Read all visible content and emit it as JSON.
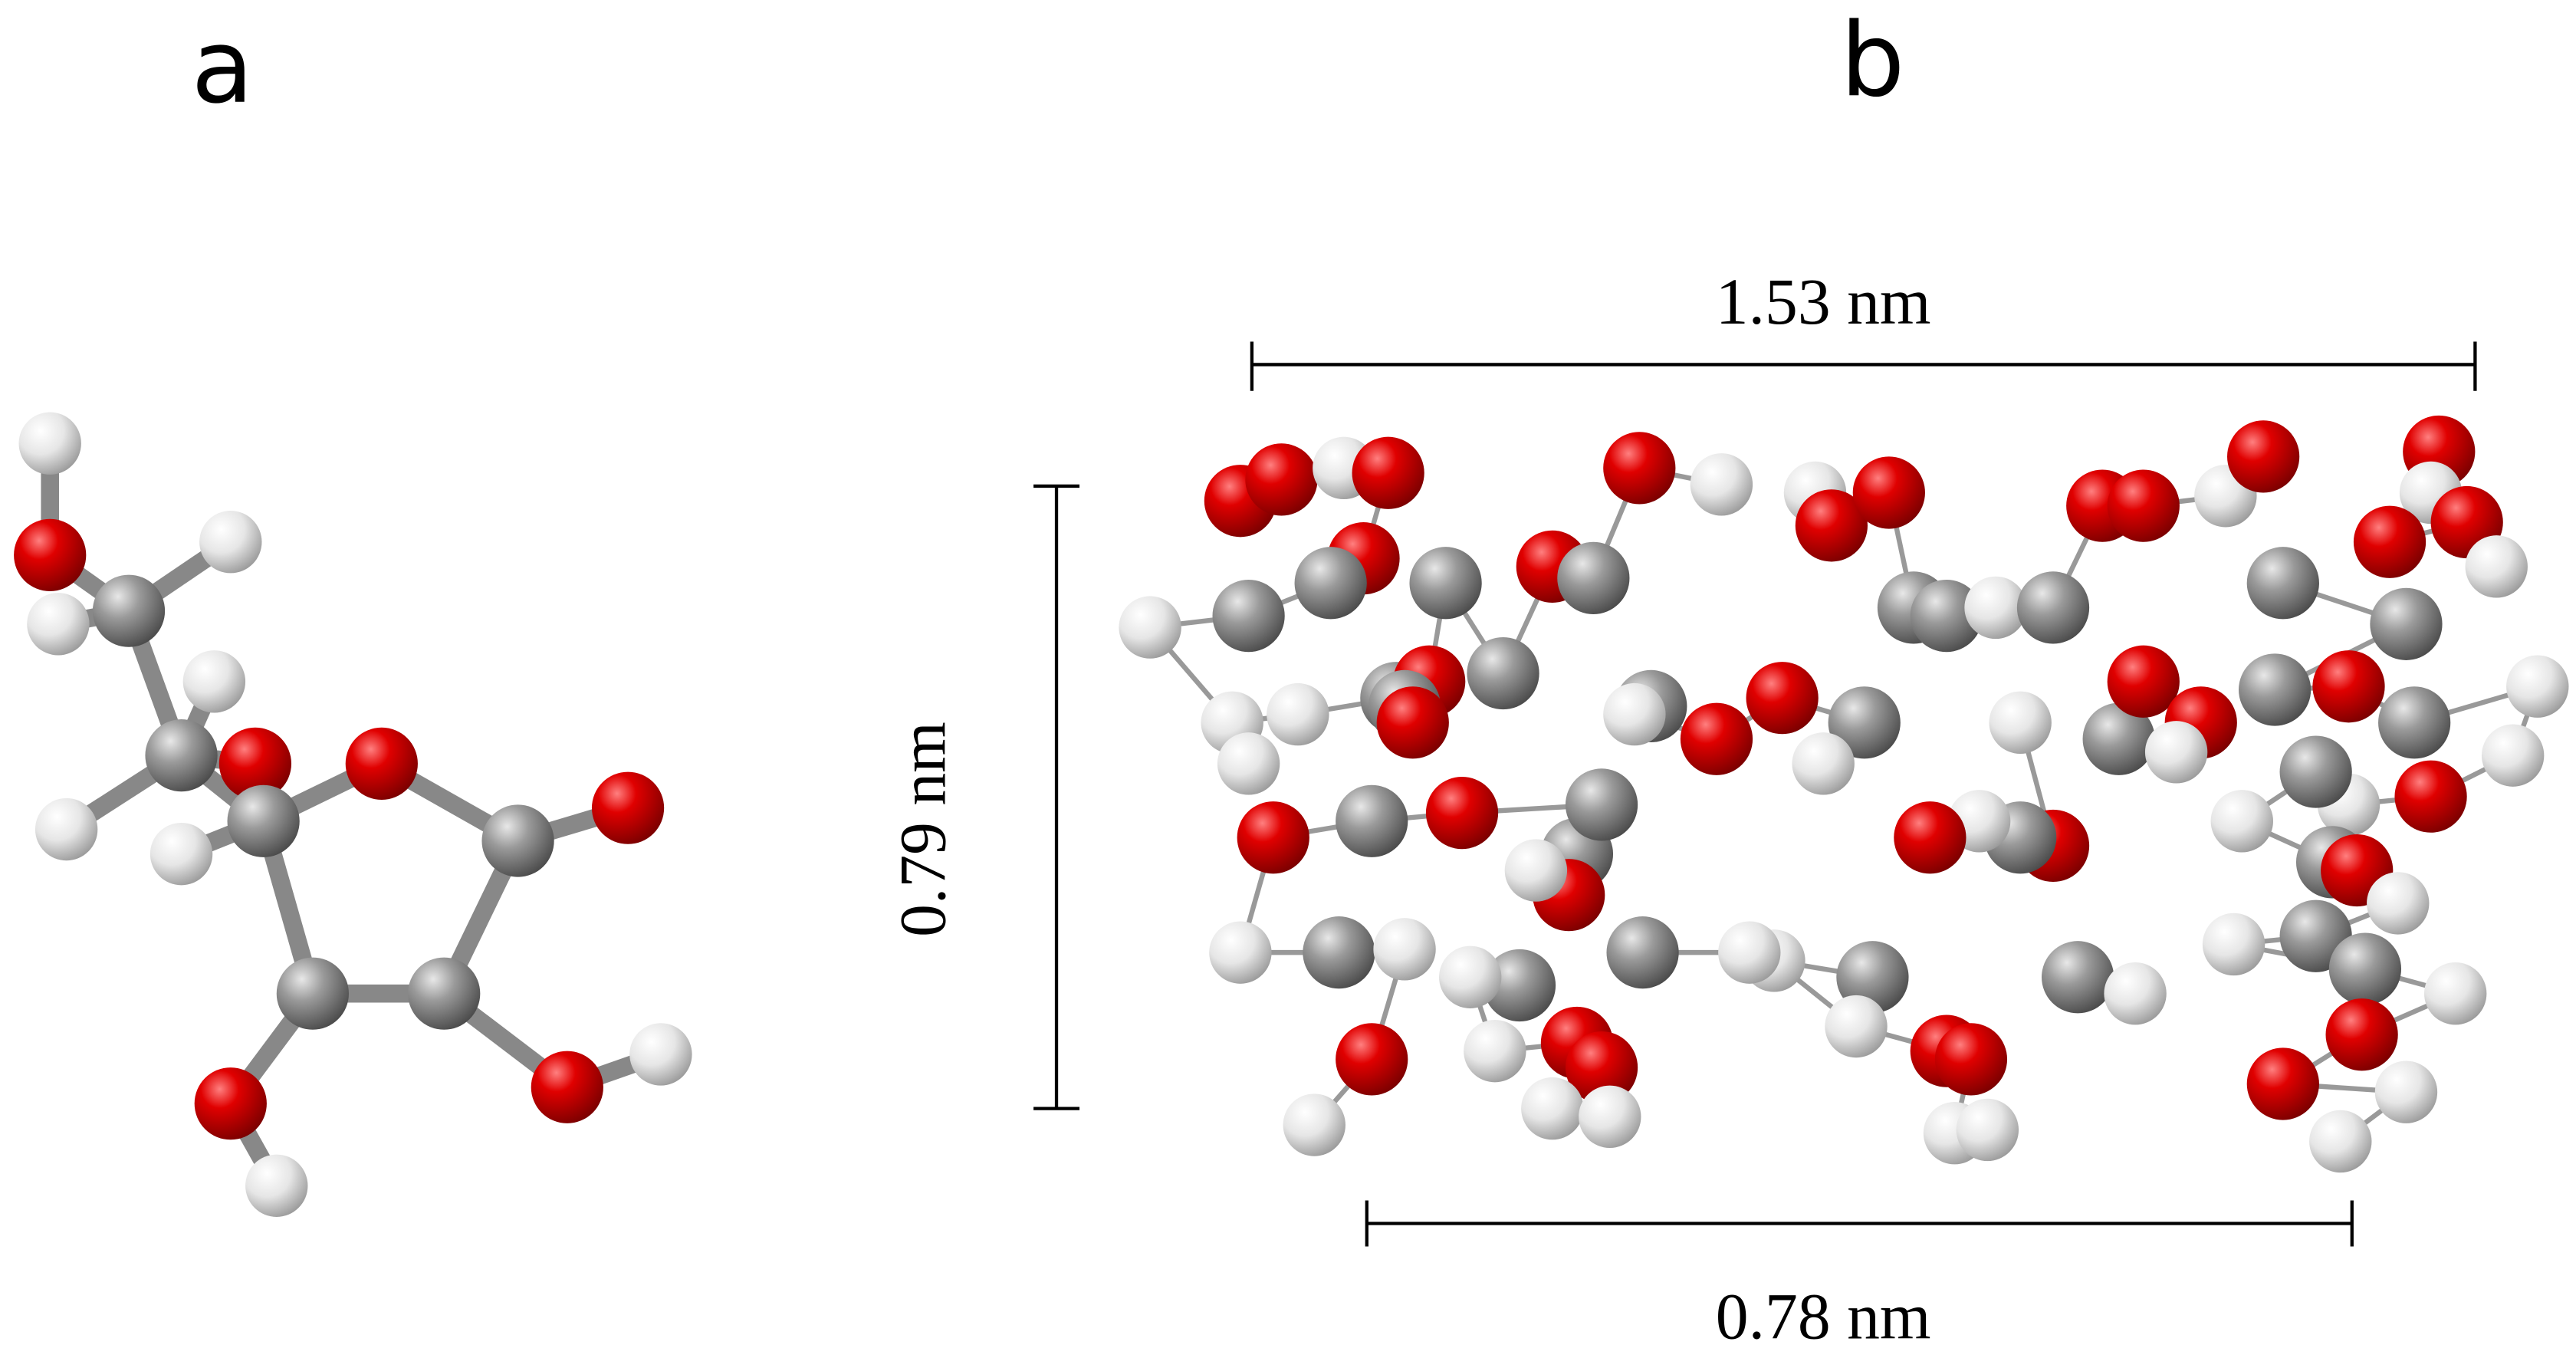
{
  "panels": [
    {
      "label": "a"
    },
    {
      "label": "b",
      "dimensions": {
        "top": "1.53 nm",
        "side": "0.79 nm",
        "bottom": "0.78 nm"
      }
    }
  ]
}
